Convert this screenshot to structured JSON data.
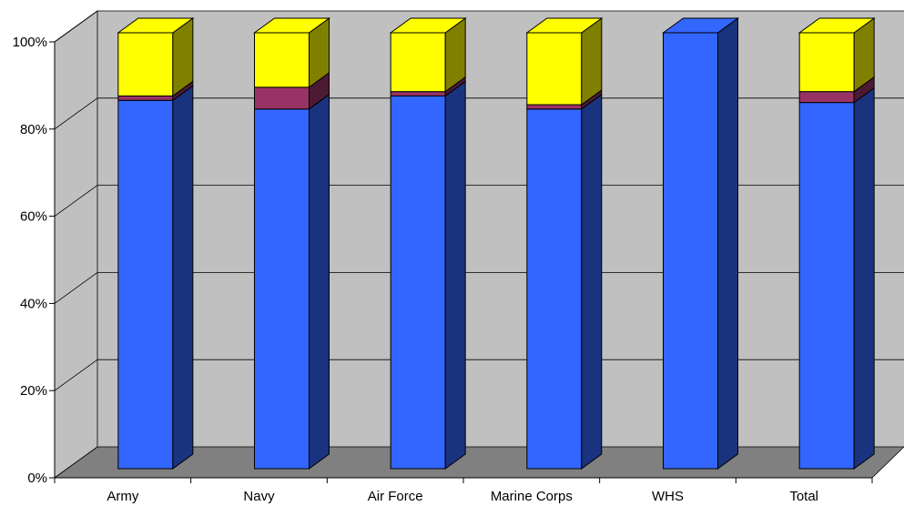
{
  "chart_data": {
    "type": "bar",
    "stacked": true,
    "percent_stacked": true,
    "three_d": true,
    "title": "",
    "xlabel": "",
    "ylabel": "",
    "ylim": [
      0,
      100
    ],
    "yticks": [
      "0%",
      "20%",
      "40%",
      "60%",
      "80%",
      "100%"
    ],
    "grid": true,
    "legend": "none",
    "categories": [
      "Army",
      "Navy",
      "Air Force",
      "Marine Corps",
      "WHS",
      "Total"
    ],
    "series": [
      {
        "values": [
          84.5,
          82.5,
          85.5,
          82.5,
          100,
          84.0
        ],
        "color": "#3366FF",
        "side_color": "#1A337F"
      },
      {
        "values": [
          1.0,
          5.0,
          1.0,
          1.0,
          0,
          2.5
        ],
        "color": "#993366",
        "side_color": "#4D1A33"
      },
      {
        "values": [
          14.5,
          12.5,
          13.5,
          16.5,
          0,
          13.5
        ],
        "color": "#FFFF00",
        "side_color": "#808000"
      }
    ],
    "colors": {
      "wall": "#C0C0C0",
      "floor": "#808080",
      "gridline": "#000000"
    }
  }
}
